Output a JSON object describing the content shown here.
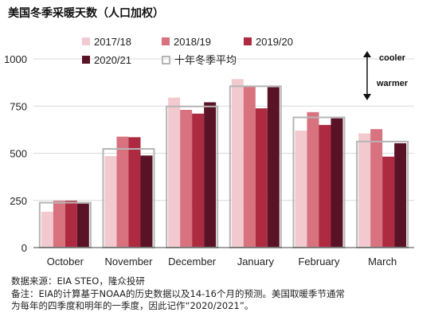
{
  "title": "美国冬季采暖天数（人口加权）",
  "chart_data": {
    "type": "bar",
    "categories": [
      "October",
      "November",
      "December",
      "January",
      "February",
      "March"
    ],
    "series": [
      {
        "name": "2017/18",
        "color": "#f2c9cf",
        "values": [
          190,
          485,
          795,
          893,
          620,
          605
        ]
      },
      {
        "name": "2018/19",
        "color": "#d9727f",
        "values": [
          248,
          588,
          730,
          858,
          718,
          628
        ]
      },
      {
        "name": "2019/20",
        "color": "#ad2a40",
        "values": [
          248,
          585,
          710,
          738,
          650,
          482
        ]
      },
      {
        "name": "2020/21",
        "color": "#5a1226",
        "values": [
          233,
          488,
          770,
          850,
          685,
          553
        ]
      }
    ],
    "reference": {
      "name": "十年冬季平均",
      "color": "#b5b5b5",
      "values": [
        238,
        523,
        748,
        855,
        690,
        562
      ]
    },
    "ylim": [
      0,
      1000
    ],
    "yticks": [
      0,
      250,
      500,
      750,
      1000
    ],
    "xlabel": "",
    "ylabel": "",
    "annotations": {
      "top": "cooler",
      "bottom": "warmer"
    },
    "legend_position": "top"
  },
  "notes": {
    "source": "数据来源：EIA STEO，隆众投研",
    "remark_1": "备注：EIA的计算基于NOAA的历史数据以及14-16个月的预测。美国取暖季节通常",
    "remark_2": "为每年的四季度和明年的一季度，因此记作“2020/2021”。"
  }
}
